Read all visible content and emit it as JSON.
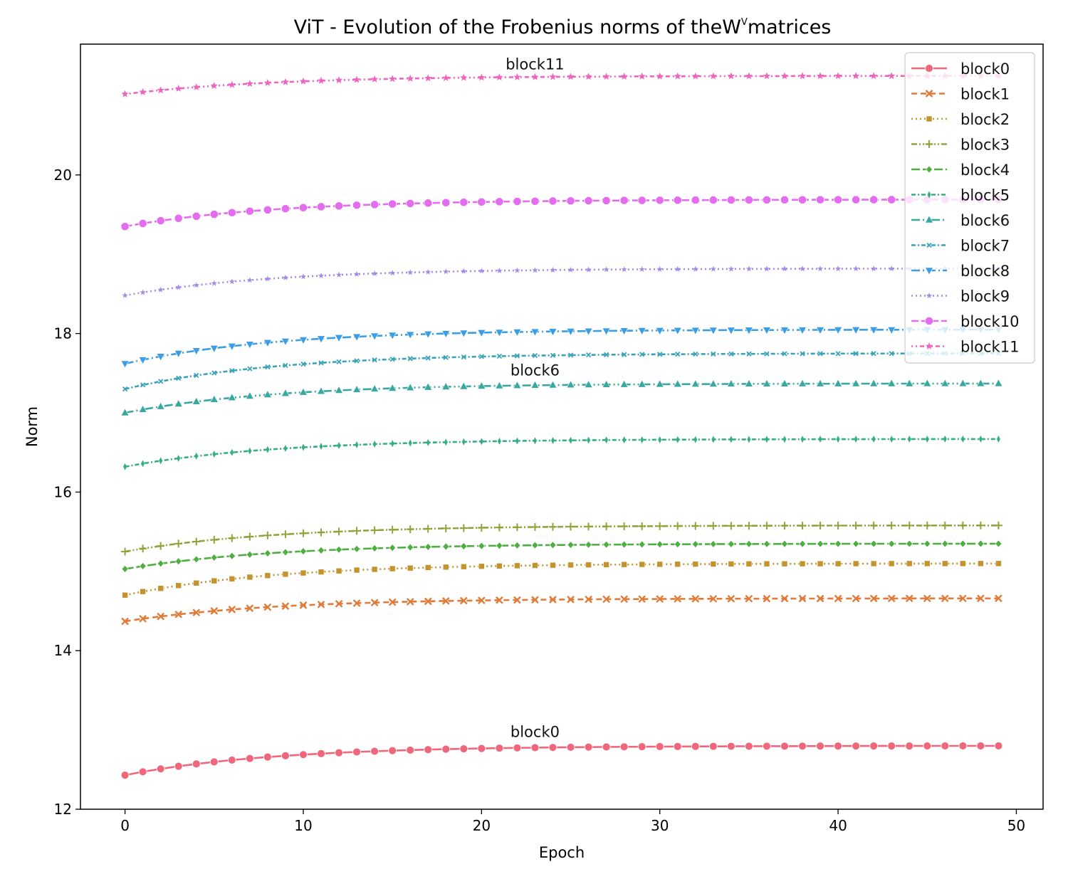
{
  "chart_data": {
    "type": "line",
    "title": "ViT - Evolution of the Frobenius norms of the",
    "title_symbol": "W",
    "title_superscript": "V",
    "title_suffix": "matrices",
    "xlabel": "Epoch",
    "ylabel": "Norm",
    "xlim": [
      -2.5,
      51.5
    ],
    "ylim": [
      12,
      21.65
    ],
    "xticks": [
      0,
      10,
      20,
      30,
      40,
      50
    ],
    "yticks": [
      12,
      14,
      16,
      18,
      20
    ],
    "grid": false,
    "legend_position": "top-right",
    "epochs": 50,
    "series": [
      {
        "name": "block0",
        "color": "#f0677b",
        "marker": "circle",
        "dash": "",
        "start": 12.43,
        "end": 12.8,
        "rate": 0.12
      },
      {
        "name": "block1",
        "color": "#e07b39",
        "marker": "x",
        "dash": "8,5",
        "start": 14.37,
        "end": 14.66,
        "rate": 0.12
      },
      {
        "name": "block2",
        "color": "#c4932e",
        "marker": "square",
        "dash": "2,4",
        "start": 14.7,
        "end": 15.1,
        "rate": 0.12
      },
      {
        "name": "block3",
        "color": "#93a33b",
        "marker": "plus",
        "dash": "8,3,2,3,2,3",
        "start": 15.25,
        "end": 15.58,
        "rate": 0.12
      },
      {
        "name": "block4",
        "color": "#4fae41",
        "marker": "diamond",
        "dash": "12,4",
        "start": 15.03,
        "end": 15.35,
        "rate": 0.12
      },
      {
        "name": "block5",
        "color": "#36ae85",
        "marker": "thin-diamond",
        "dash": "6,3,2,3",
        "start": 16.32,
        "end": 16.67,
        "rate": 0.12
      },
      {
        "name": "block6",
        "color": "#39a89e",
        "marker": "triangle-up",
        "dash": "12,4,2,4,2,4",
        "start": 17.0,
        "end": 17.37,
        "rate": 0.12
      },
      {
        "name": "block7",
        "color": "#3aa3b8",
        "marker": "x-small",
        "dash": "6,3,2,3",
        "start": 17.3,
        "end": 17.75,
        "rate": 0.12
      },
      {
        "name": "block8",
        "color": "#3b9de4",
        "marker": "triangle-down",
        "dash": "12,4,2,4",
        "start": 17.62,
        "end": 18.05,
        "rate": 0.12
      },
      {
        "name": "block9",
        "color": "#a38be6",
        "marker": "star-small",
        "dash": "2,4",
        "start": 18.48,
        "end": 18.82,
        "rate": 0.12
      },
      {
        "name": "block10",
        "color": "#e36cef",
        "marker": "octagon",
        "dash": "10,4",
        "start": 19.35,
        "end": 19.69,
        "rate": 0.12
      },
      {
        "name": "block11",
        "color": "#ef63bf",
        "marker": "star",
        "dash": "2,4,2,4,6,4",
        "start": 21.02,
        "end": 21.25,
        "rate": 0.12
      }
    ],
    "annotations": [
      {
        "text": "block11",
        "x": 23,
        "y": 21.33
      },
      {
        "text": "block6",
        "x": 23,
        "y": 17.47
      },
      {
        "text": "block0",
        "x": 23,
        "y": 12.91
      }
    ]
  }
}
